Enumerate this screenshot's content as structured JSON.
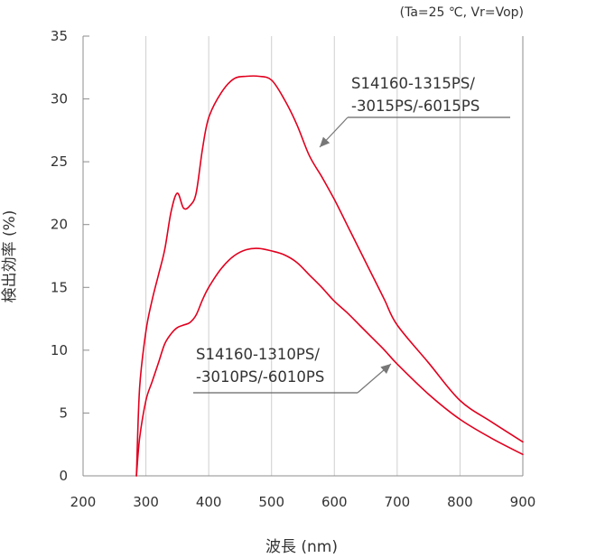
{
  "chart_data": {
    "type": "line",
    "condition": "(Ta=25 ℃, Vr=Vop)",
    "xlabel": "波長 (nm)",
    "ylabel": "検出効率 (%)",
    "xlim": [
      200,
      900
    ],
    "ylim": [
      0,
      35
    ],
    "xticks": [
      "200",
      "300",
      "400",
      "500",
      "600",
      "700",
      "800",
      "900"
    ],
    "yticks": [
      "0",
      "5",
      "10",
      "15",
      "20",
      "25",
      "30",
      "35"
    ],
    "grid": "vertical",
    "line_color": "#e1001e",
    "series": [
      {
        "name": "S14160-1315PS/-3015PS/-6015PS",
        "label_lines": [
          "S14160-1315PS/",
          "-3015PS/-6015PS"
        ],
        "x": [
          285,
          290,
          300,
          310,
          320,
          330,
          340,
          350,
          360,
          370,
          380,
          390,
          400,
          420,
          440,
          460,
          480,
          500,
          520,
          540,
          560,
          580,
          600,
          620,
          640,
          660,
          680,
          700,
          750,
          800,
          850,
          900
        ],
        "y": [
          0,
          7,
          11.5,
          14,
          16,
          18,
          21,
          22.5,
          21.3,
          21.5,
          22.5,
          26,
          28.5,
          30.5,
          31.6,
          31.8,
          31.8,
          31.5,
          30,
          28,
          25.5,
          23.8,
          22,
          20,
          18,
          16,
          14,
          12,
          9,
          6,
          4.3,
          2.7
        ]
      },
      {
        "name": "S14160-1310PS/-3010PS/-6010PS",
        "label_lines": [
          "S14160-1310PS/",
          "-3010PS/-6010PS"
        ],
        "x": [
          285,
          290,
          300,
          310,
          320,
          330,
          340,
          350,
          360,
          370,
          380,
          390,
          400,
          420,
          440,
          460,
          480,
          500,
          520,
          540,
          560,
          580,
          600,
          620,
          640,
          660,
          680,
          700,
          750,
          800,
          850,
          900
        ],
        "y": [
          0,
          3,
          6,
          7.5,
          9,
          10.5,
          11.3,
          11.8,
          12,
          12.2,
          12.8,
          14,
          15,
          16.5,
          17.5,
          18,
          18.1,
          17.9,
          17.6,
          17,
          16,
          15,
          13.9,
          13,
          12,
          11,
          10,
          8.9,
          6.5,
          4.5,
          3,
          1.7
        ]
      }
    ]
  }
}
